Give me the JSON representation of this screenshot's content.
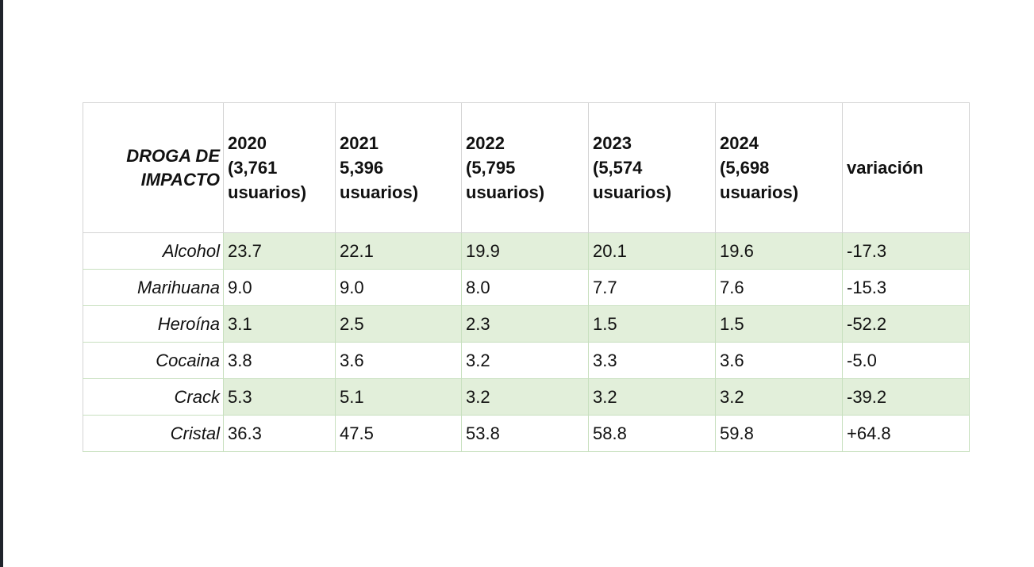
{
  "chart_data": {
    "type": "table",
    "columns": [
      [
        "DROGA DE",
        "IMPACTO"
      ],
      [
        "2020",
        "(3,761",
        "usuarios)"
      ],
      [
        "2021",
        "5,396",
        "usuarios)"
      ],
      [
        "2022",
        "(5,795",
        "usuarios)"
      ],
      [
        "2023",
        "(5,574",
        "usuarios)"
      ],
      [
        "2024",
        "(5,698",
        "usuarios)"
      ],
      [
        "variación"
      ]
    ],
    "rows": [
      {
        "label": "Alcohol",
        "values": [
          "23.7",
          "22.1",
          "19.9",
          "20.1",
          "19.6",
          "-17.3"
        ]
      },
      {
        "label": "Marihuana",
        "values": [
          "9.0",
          "9.0",
          "8.0",
          "7.7",
          "7.6",
          "-15.3"
        ]
      },
      {
        "label": "Heroína",
        "values": [
          "3.1",
          "2.5",
          "2.3",
          "1.5",
          "1.5",
          "-52.2"
        ]
      },
      {
        "label": "Cocaina",
        "values": [
          "3.8",
          "3.6",
          "3.2",
          "3.3",
          "3.6",
          "-5.0"
        ]
      },
      {
        "label": "Crack",
        "values": [
          "5.3",
          "5.1",
          "3.2",
          "3.2",
          "3.2",
          "-39.2"
        ]
      },
      {
        "label": "Cristal",
        "values": [
          "36.3",
          "47.5",
          "53.8",
          "58.8",
          "59.8",
          "+64.8"
        ]
      }
    ],
    "colors": {
      "band_fill": "#e2efda",
      "border": "#c8e0bf"
    }
  }
}
